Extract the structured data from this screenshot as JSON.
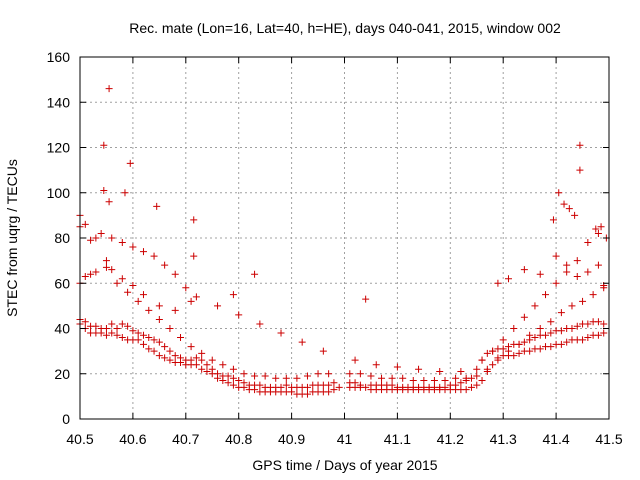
{
  "chart_data": {
    "type": "scatter",
    "title": "Rec. mate (Lon=16, Lat=40, h=HE), days 040-041, 2015, window 002",
    "xlabel": "GPS time / Days of year 2015",
    "ylabel": "STEC from uqrg / TECUs",
    "xlim": [
      40.5,
      41.5
    ],
    "ylim": [
      0,
      160
    ],
    "xticks": [
      "40.5",
      "40.6",
      "40.7",
      "40.8",
      "40.9",
      "41",
      "41.1",
      "41.2",
      "41.3",
      "41.4",
      "41.5"
    ],
    "yticks": [
      "0",
      "20",
      "40",
      "60",
      "80",
      "100",
      "120",
      "140",
      "160"
    ],
    "grid": true,
    "marker": "plus",
    "color": "#cc0000",
    "series": [
      {
        "name": "STEC",
        "x": [
          40.5,
          40.51,
          40.52,
          40.53,
          40.54,
          40.55,
          40.56,
          40.57,
          40.58,
          40.59,
          40.6,
          40.61,
          40.62,
          40.63,
          40.64,
          40.65,
          40.66,
          40.67,
          40.68,
          40.69,
          40.7,
          40.71,
          40.72,
          40.73,
          40.74,
          40.75,
          40.76,
          40.77,
          40.78,
          40.79,
          40.8,
          40.81,
          40.82,
          40.83,
          40.84,
          40.85,
          40.86,
          40.87,
          40.88,
          40.89,
          40.9,
          40.91,
          40.92,
          40.93,
          40.94,
          40.95,
          40.96,
          40.97,
          40.98,
          40.99,
          41.01,
          41.02,
          41.03,
          41.04,
          41.05,
          41.06,
          41.07,
          41.08,
          41.09,
          41.1,
          41.11,
          41.12,
          41.13,
          41.14,
          41.15,
          41.16,
          41.17,
          41.18,
          41.19,
          41.2,
          41.21,
          41.22,
          41.23,
          41.24,
          41.25,
          41.26,
          41.27,
          41.28,
          41.29,
          41.3,
          41.31,
          41.32,
          41.33,
          41.34,
          41.35,
          41.36,
          41.37,
          41.38,
          41.39,
          41.4,
          41.41,
          41.42,
          41.43,
          41.44,
          41.45,
          41.46,
          41.47,
          41.48,
          41.49,
          40.5,
          40.51,
          40.52,
          40.53,
          40.54,
          40.55,
          40.56,
          40.57,
          40.58,
          40.59,
          40.6,
          40.61,
          40.62,
          40.63,
          40.64,
          40.65,
          40.66,
          40.67,
          40.68,
          40.69,
          40.7,
          40.71,
          40.72,
          40.73,
          40.74,
          40.75,
          40.76,
          40.77,
          40.78,
          40.79,
          40.8,
          40.81,
          40.82,
          40.83,
          40.84,
          40.85,
          40.86,
          40.87,
          40.88,
          40.89,
          40.9,
          40.91,
          40.92,
          40.93,
          40.94,
          40.95,
          40.96,
          40.97,
          40.98,
          41.01,
          41.02,
          41.03,
          41.05,
          41.06,
          41.07,
          41.08,
          41.09,
          41.1,
          41.11,
          41.12,
          41.13,
          41.14,
          41.15,
          41.16,
          41.17,
          41.18,
          41.19,
          41.2,
          41.21,
          41.22,
          41.23,
          41.24,
          41.25,
          41.26,
          41.27,
          41.28,
          41.29,
          41.3,
          41.31,
          41.32,
          41.33,
          41.34,
          41.35,
          41.36,
          41.37,
          41.38,
          41.39,
          41.4,
          41.41,
          41.42,
          41.43,
          41.44,
          41.45,
          41.46,
          41.47,
          41.48,
          41.49,
          40.5,
          40.51,
          40.52,
          40.53,
          40.55,
          40.57,
          40.59,
          40.61,
          40.63,
          40.65,
          40.67,
          40.69,
          40.71,
          40.73,
          40.75,
          40.77,
          40.79,
          40.81,
          40.83,
          40.85,
          40.87,
          40.89,
          40.91,
          40.93,
          40.95,
          40.97,
          41.01,
          41.03,
          41.05,
          41.07,
          41.09,
          41.11,
          41.13,
          41.15,
          41.17,
          41.19,
          41.21,
          41.23,
          41.25,
          41.27,
          41.29,
          41.31,
          41.33,
          41.35,
          41.37,
          41.39,
          41.41,
          41.43,
          41.45,
          41.47,
          41.49,
          40.5,
          40.52,
          40.54,
          40.56,
          40.58,
          40.6,
          40.62,
          40.64,
          40.66,
          40.68,
          40.7,
          40.72,
          40.76,
          40.8,
          40.84,
          40.88,
          40.92,
          40.96,
          41.02,
          41.06,
          41.1,
          41.14,
          41.18,
          41.22,
          41.26,
          41.28,
          41.3,
          41.32,
          41.34,
          41.36,
          41.38,
          41.4,
          41.42,
          41.44,
          41.46,
          41.48,
          40.5,
          40.51,
          40.53,
          40.55,
          40.56,
          40.58,
          40.6,
          40.62,
          40.65,
          40.68,
          40.71,
          40.79,
          40.83,
          41.04,
          41.29,
          41.31,
          41.34,
          41.37,
          41.4,
          41.42,
          41.44,
          41.46,
          41.48,
          41.49
        ],
        "y": [
          42,
          40,
          38,
          38,
          38,
          37,
          38,
          37,
          36,
          35,
          35,
          35,
          33,
          31,
          30,
          28,
          27,
          26,
          25,
          25,
          24,
          24,
          24,
          22,
          21,
          20,
          18,
          17,
          16,
          15,
          14,
          14,
          13,
          13,
          12,
          12,
          12,
          12,
          12,
          12,
          12,
          11,
          11,
          11,
          12,
          12,
          12,
          12,
          13,
          14,
          14,
          14,
          14,
          14,
          13,
          13,
          13,
          13,
          13,
          13,
          13,
          13,
          13,
          13,
          13,
          13,
          13,
          13,
          13,
          13,
          13,
          13,
          13,
          14,
          15,
          17,
          21,
          24,
          27,
          28,
          28,
          28,
          29,
          30,
          30,
          31,
          31,
          32,
          32,
          33,
          33,
          34,
          35,
          35,
          35,
          36,
          37,
          37,
          38,
          44,
          43,
          41,
          41,
          40,
          40,
          42,
          40,
          42,
          41,
          39,
          38,
          37,
          36,
          35,
          34,
          32,
          30,
          28,
          27,
          26,
          26,
          27,
          26,
          24,
          22,
          20,
          19,
          19,
          18,
          17,
          16,
          15,
          15,
          15,
          14,
          14,
          14,
          14,
          15,
          14,
          14,
          14,
          14,
          15,
          15,
          15,
          15,
          16,
          16,
          16,
          15,
          15,
          15,
          15,
          15,
          15,
          14,
          14,
          14,
          14,
          14,
          14,
          14,
          14,
          14,
          14,
          15,
          15,
          16,
          17,
          18,
          22,
          26,
          29,
          30,
          31,
          31,
          32,
          33,
          33,
          34,
          35,
          36,
          37,
          37,
          38,
          39,
          39,
          40,
          40,
          41,
          42,
          42,
          43,
          43,
          42,
          60,
          63,
          64,
          65,
          67,
          60,
          56,
          52,
          48,
          44,
          40,
          36,
          32,
          29,
          26,
          24,
          22,
          20,
          19,
          19,
          18,
          18,
          18,
          19,
          20,
          20,
          20,
          20,
          19,
          18,
          18,
          18,
          17,
          17,
          17,
          17,
          18,
          18,
          19,
          22,
          26,
          30,
          33,
          37,
          40,
          43,
          47,
          50,
          52,
          55,
          58,
          85,
          79,
          82,
          80,
          78,
          76,
          74,
          72,
          68,
          64,
          58,
          54,
          50,
          46,
          42,
          38,
          34,
          30,
          26,
          24,
          23,
          22,
          21,
          21,
          26,
          30,
          35,
          40,
          45,
          50,
          55,
          60,
          65,
          70,
          78,
          82,
          90,
          86,
          80,
          70,
          66,
          62,
          59,
          55,
          50,
          48,
          52,
          55,
          64,
          53,
          60,
          62,
          66,
          64,
          72,
          68,
          63,
          65,
          68,
          59
        ]
      }
    ],
    "outliers": {
      "x": [
        40.555,
        40.545,
        40.595,
        40.585,
        40.545,
        40.555,
        40.645,
        40.715,
        40.715,
        41.445,
        41.445,
        41.405,
        41.415,
        41.425,
        41.395,
        41.435,
        41.475,
        41.485,
        41.495
      ],
      "y": [
        146,
        121,
        113,
        100,
        101,
        96,
        94,
        88,
        72,
        121,
        110,
        100,
        95,
        93,
        88,
        90,
        84,
        85,
        80
      ]
    }
  }
}
